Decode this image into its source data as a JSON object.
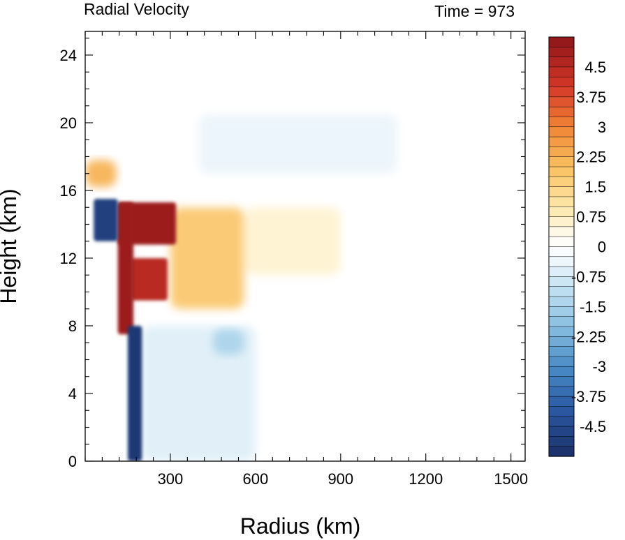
{
  "chart_data": {
    "type": "heatmap",
    "title_left": "Radial Velocity",
    "title_right": "Time = 973",
    "xlabel": "Radius (km)",
    "ylabel": "Height (km)",
    "xlim": [
      0,
      1550
    ],
    "ylim": [
      0,
      25.4
    ],
    "xticks": [
      300,
      600,
      900,
      1200,
      1500
    ],
    "yticks": [
      0,
      4,
      8,
      12,
      16,
      20,
      24
    ],
    "colorbar": {
      "min": -5.25,
      "max": 5.25,
      "step": 0.25,
      "labels": [
        "4.5",
        "3.75",
        "3",
        "2.25",
        "1.5",
        "0.75",
        "0",
        "-0.75",
        "-1.5",
        "-2.25",
        "-3",
        "-3.75",
        "-4.5"
      ],
      "label_values": [
        4.5,
        3.75,
        3,
        2.25,
        1.5,
        0.75,
        0,
        -0.75,
        -1.5,
        -2.25,
        -3,
        -3.75,
        -4.5
      ]
    },
    "features": [
      {
        "name": "outflow-core-upper",
        "radius": [
          115,
          320
        ],
        "height": [
          12.8,
          15.3
        ],
        "velocity": 5.0
      },
      {
        "name": "outflow-core-mid",
        "radius": [
          160,
          290
        ],
        "height": [
          9.5,
          12.0
        ],
        "velocity": 4.5
      },
      {
        "name": "outflow-column-inner",
        "radius": [
          115,
          170
        ],
        "height": [
          7.5,
          15.3
        ],
        "velocity": 5.0
      },
      {
        "name": "outflow-broad-upper",
        "radius": [
          300,
          560
        ],
        "height": [
          9.0,
          15.0
        ],
        "velocity": 1.8
      },
      {
        "name": "outflow-faint",
        "radius": [
          560,
          900
        ],
        "height": [
          11.0,
          15.0
        ],
        "velocity": 0.6
      },
      {
        "name": "inflow-eyewall",
        "radius": [
          150,
          200
        ],
        "height": [
          0,
          8.0
        ],
        "velocity": -5.0
      },
      {
        "name": "inflow-upper-inner",
        "radius": [
          30,
          115
        ],
        "height": [
          13.0,
          15.5
        ],
        "velocity": -4.8
      },
      {
        "name": "inflow-lower-broad",
        "radius": [
          200,
          600
        ],
        "height": [
          0,
          8.0
        ],
        "velocity": -0.6
      },
      {
        "name": "inflow-mid-patch",
        "radius": [
          450,
          560
        ],
        "height": [
          6.3,
          7.8
        ],
        "velocity": -1.4
      },
      {
        "name": "inflow-upper-diffuse",
        "radius": [
          400,
          1100
        ],
        "height": [
          17.0,
          20.5
        ],
        "velocity": -0.4
      },
      {
        "name": "outflow-upper-inner",
        "radius": [
          0,
          110
        ],
        "height": [
          16.2,
          17.8
        ],
        "velocity": 2.2
      }
    ]
  }
}
